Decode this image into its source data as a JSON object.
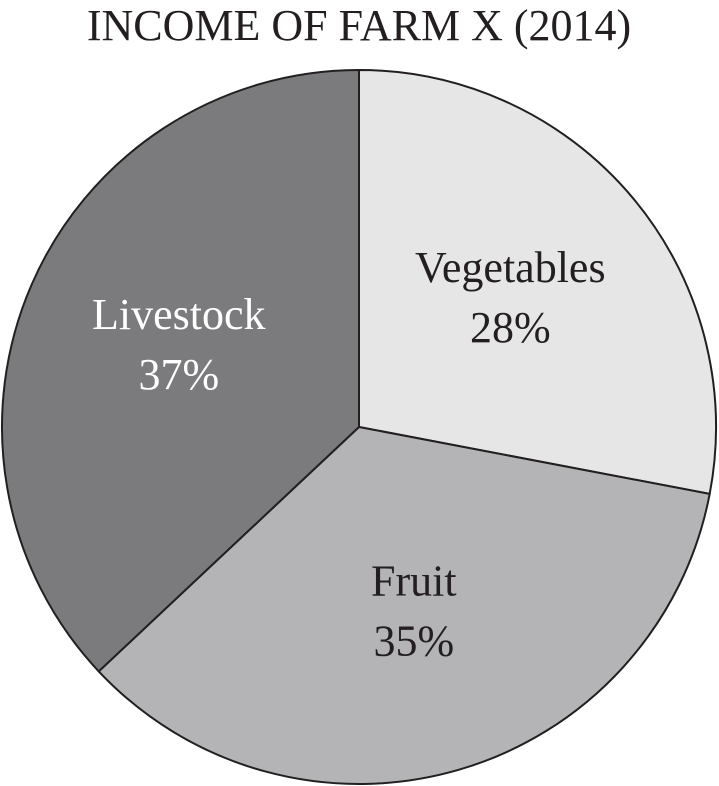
{
  "chart_data": {
    "type": "pie",
    "title": "INCOME OF FARM X (2014)",
    "categories": [
      "Vegetables",
      "Fruit",
      "Livestock"
    ],
    "values": [
      28,
      35,
      37
    ],
    "value_labels": [
      "28%",
      "35%",
      "37%"
    ],
    "colors": [
      "#e6e6e6",
      "#b4b4b6",
      "#7b7b7d"
    ]
  }
}
